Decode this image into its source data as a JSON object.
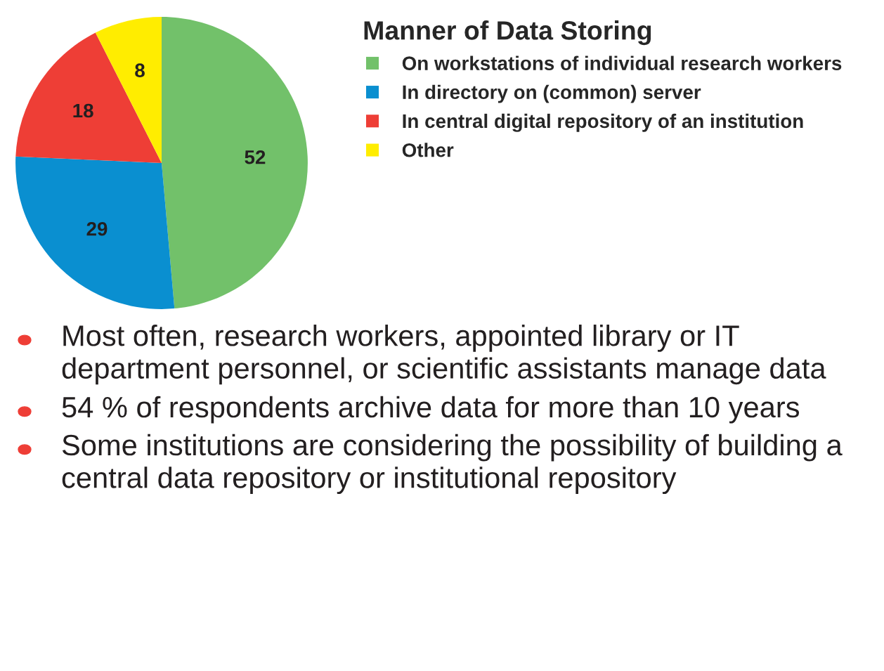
{
  "chart_data": {
    "type": "pie",
    "legend_title": "Manner of Data Storing",
    "legend": "right",
    "data_labels": true,
    "categories": [
      "On workstations of individual research workers",
      "In directory on (common) server",
      "In central digital repository of an institution",
      "Other"
    ],
    "values": [
      52,
      29,
      18,
      8
    ],
    "colors": [
      "#72c16a",
      "#0a8fd0",
      "#ee3e36",
      "#ffed00"
    ],
    "annotations": [
      "Most often, research workers, appointed library or IT department personnel, or scientific assistants manage data",
      "54 % of respondents archive data for more than 10 years",
      "Some institutions are considering the possibility of building a central data repository or institutional repository"
    ]
  }
}
